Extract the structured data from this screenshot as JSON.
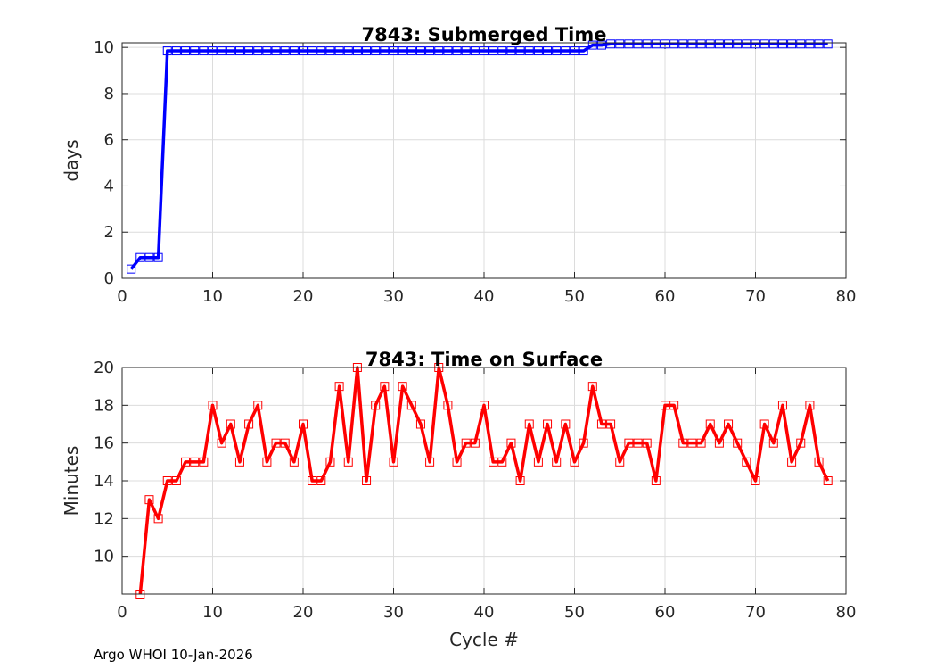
{
  "footer": "Argo WHOI 10-Jan-2026",
  "chart_data": [
    {
      "type": "line",
      "title": "7843: Submerged Time",
      "xlabel": "",
      "ylabel": "days",
      "xlim": [
        0,
        80
      ],
      "ylim": [
        0,
        10.2
      ],
      "xticks": [
        "0",
        "10",
        "20",
        "30",
        "40",
        "50",
        "60",
        "70",
        "80"
      ],
      "yticks": [
        "0",
        "2",
        "4",
        "6",
        "8",
        "10"
      ],
      "grid": true,
      "color": "#0000ff",
      "marker": "square",
      "series": [
        {
          "x": [
            1,
            2,
            3,
            4,
            5,
            6,
            7,
            8,
            9,
            10,
            11,
            12,
            13,
            14,
            15,
            16,
            17,
            18,
            19,
            20,
            21,
            22,
            23,
            24,
            25,
            26,
            27,
            28,
            29,
            30,
            31,
            32,
            33,
            34,
            35,
            36,
            37,
            38,
            39,
            40,
            41,
            42,
            43,
            44,
            45,
            46,
            47,
            48,
            49,
            50,
            51,
            52,
            53,
            54,
            55,
            56,
            57,
            58,
            59,
            60,
            61,
            62,
            63,
            64,
            65,
            66,
            67,
            68,
            69,
            70,
            71,
            72,
            73,
            74,
            75,
            76,
            77,
            78
          ],
          "values": [
            0.4,
            0.9,
            0.9,
            0.9,
            9.85,
            9.85,
            9.85,
            9.85,
            9.85,
            9.85,
            9.85,
            9.85,
            9.85,
            9.85,
            9.85,
            9.85,
            9.85,
            9.85,
            9.85,
            9.85,
            9.85,
            9.85,
            9.85,
            9.85,
            9.85,
            9.85,
            9.85,
            9.85,
            9.85,
            9.85,
            9.85,
            9.85,
            9.85,
            9.85,
            9.85,
            9.85,
            9.85,
            9.85,
            9.85,
            9.85,
            9.85,
            9.85,
            9.85,
            9.85,
            9.85,
            9.85,
            9.85,
            9.85,
            9.85,
            9.85,
            9.85,
            10.1,
            10.1,
            10.15,
            10.15,
            10.15,
            10.15,
            10.15,
            10.15,
            10.15,
            10.15,
            10.15,
            10.15,
            10.15,
            10.15,
            10.15,
            10.15,
            10.15,
            10.15,
            10.15,
            10.15,
            10.15,
            10.15,
            10.15,
            10.15,
            10.15,
            10.15,
            10.15
          ]
        }
      ]
    },
    {
      "type": "line",
      "title": "7843: Time on Surface",
      "xlabel": "Cycle #",
      "ylabel": "Minutes",
      "xlim": [
        0,
        80
      ],
      "ylim": [
        8,
        20
      ],
      "xticks": [
        "0",
        "10",
        "20",
        "30",
        "40",
        "50",
        "60",
        "70",
        "80"
      ],
      "yticks": [
        "10",
        "12",
        "14",
        "16",
        "18",
        "20"
      ],
      "grid": true,
      "color": "#ff0000",
      "marker": "square",
      "series": [
        {
          "x": [
            2,
            3,
            4,
            5,
            6,
            7,
            8,
            9,
            10,
            11,
            12,
            13,
            14,
            15,
            16,
            17,
            18,
            19,
            20,
            21,
            22,
            23,
            24,
            25,
            26,
            27,
            28,
            29,
            30,
            31,
            32,
            33,
            34,
            35,
            36,
            37,
            38,
            39,
            40,
            41,
            42,
            43,
            44,
            45,
            46,
            47,
            48,
            49,
            50,
            51,
            52,
            53,
            54,
            55,
            56,
            57,
            58,
            59,
            60,
            61,
            62,
            63,
            64,
            65,
            66,
            67,
            68,
            69,
            70,
            71,
            72,
            73,
            74,
            75,
            76,
            77,
            78
          ],
          "values": [
            8,
            13,
            12,
            14,
            14,
            15,
            15,
            15,
            18,
            16,
            17,
            15,
            17,
            18,
            15,
            16,
            16,
            15,
            17,
            14,
            14,
            15,
            19,
            15,
            20,
            14,
            18,
            19,
            15,
            19,
            18,
            17,
            15,
            20,
            18,
            15,
            16,
            16,
            18,
            15,
            15,
            16,
            14,
            17,
            15,
            17,
            15,
            17,
            15,
            16,
            19,
            17,
            17,
            15,
            16,
            16,
            16,
            14,
            18,
            18,
            16,
            16,
            16,
            17,
            16,
            17,
            16,
            15,
            14,
            17,
            16,
            18,
            15,
            16,
            18,
            15,
            14
          ]
        }
      ]
    }
  ]
}
